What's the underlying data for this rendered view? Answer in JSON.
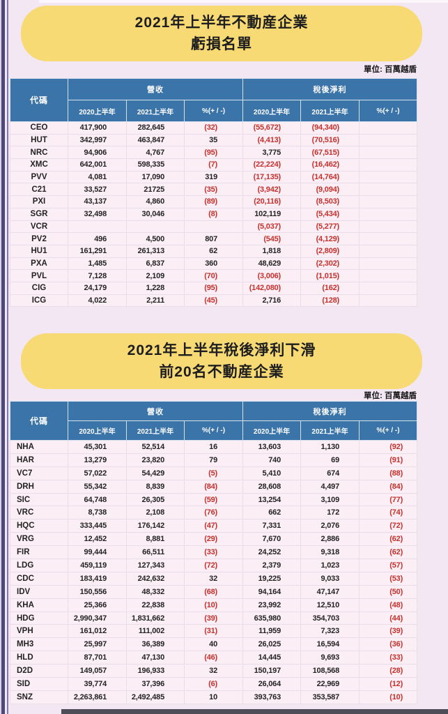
{
  "sections": [
    {
      "title_line1": "2021年上半年不動産企業",
      "title_line2": "虧損名單",
      "unit_label": "單位: 百萬越盾"
    },
    {
      "title_line1": "2021年上半年稅後淨利下滑",
      "title_line2": "前20名不動産企業",
      "unit_label": "單位: 百萬越盾"
    }
  ],
  "table_headers": {
    "code": "代碼",
    "revenue_group": "營收",
    "profit_group": "稅後淨利",
    "sub": [
      "2020上半年",
      "2021上半年",
      "%(+ / -)",
      "2020上半年",
      "2021上半年",
      "%(+ / -)"
    ]
  },
  "colors": {
    "header_blue": "#3b74a8",
    "banner_yellow": "#f7da74",
    "negative_red": "#c5302c",
    "page_background": "#f2e7f3",
    "row_background": "#fbeff5"
  },
  "tables": [
    {
      "name": "loss-list",
      "rows": [
        [
          "CEO",
          "417,900",
          "282,645",
          "(32)",
          "(55,672)",
          "(94,340)",
          ""
        ],
        [
          "HUT",
          "342,997",
          "463,847",
          "35",
          "(4,413)",
          "(70,516)",
          ""
        ],
        [
          "NRC",
          "94,906",
          "4,767",
          "(95)",
          "3,775",
          "(67,515)",
          ""
        ],
        [
          "XMC",
          "642,001",
          "598,335",
          "(7)",
          "(22,224)",
          "(16,462)",
          ""
        ],
        [
          "PVV",
          "4,081",
          "17,090",
          "319",
          "(17,135)",
          "(14,764)",
          ""
        ],
        [
          "C21",
          "33,527",
          "21725",
          "(35)",
          "(3,942)",
          "(9,094)",
          ""
        ],
        [
          "PXI",
          "43,137",
          "4,860",
          "(89)",
          "(20,116)",
          "(8,503)",
          ""
        ],
        [
          "SGR",
          "32,498",
          "30,046",
          "(8)",
          "102,119",
          "(5,434)",
          ""
        ],
        [
          "VCR",
          "",
          "",
          "",
          "(5,037)",
          "(5,277)",
          ""
        ],
        [
          "PV2",
          "496",
          "4,500",
          "807",
          "(545)",
          "(4,129)",
          ""
        ],
        [
          "HU1",
          "161,291",
          "261,313",
          "62",
          "1,818",
          "(2,809)",
          ""
        ],
        [
          "PXA",
          "1,485",
          "6,837",
          "360",
          "48,629",
          "(2,302)",
          ""
        ],
        [
          "PVL",
          "7,128",
          "2,109",
          "(70)",
          "(3,006)",
          "(1,015)",
          ""
        ],
        [
          "CIG",
          "24,179",
          "1,228",
          "(95)",
          "(142,080)",
          "(162)",
          ""
        ],
        [
          "ICG",
          "4,022",
          "2,211",
          "(45)",
          "2,716",
          "(128)",
          ""
        ]
      ]
    },
    {
      "name": "profit-decline-top20",
      "rows": [
        [
          "NHA",
          "45,301",
          "52,514",
          "16",
          "13,603",
          "1,130",
          "(92)"
        ],
        [
          "HAR",
          "13,279",
          "23,820",
          "79",
          "740",
          "69",
          "(91)"
        ],
        [
          "VC7",
          "57,022",
          "54,429",
          "(5)",
          "5,410",
          "674",
          "(88)"
        ],
        [
          "DRH",
          "55,342",
          "8,839",
          "(84)",
          "28,608",
          "4,497",
          "(84)"
        ],
        [
          "SIC",
          "64,748",
          "26,305",
          "(59)",
          "13,254",
          "3,109",
          "(77)"
        ],
        [
          "VRC",
          "8,738",
          "2,108",
          "(76)",
          "662",
          "172",
          "(74)"
        ],
        [
          "HQC",
          "333,445",
          "176,142",
          "(47)",
          "7,331",
          "2,076",
          "(72)"
        ],
        [
          "VRG",
          "12,452",
          "8,881",
          "(29)",
          "7,670",
          "2,886",
          "(62)"
        ],
        [
          "FIR",
          "99,444",
          "66,511",
          "(33)",
          "24,252",
          "9,318",
          "(62)"
        ],
        [
          "LDG",
          "459,119",
          "127,343",
          "(72)",
          "2,379",
          "1,023",
          "(57)"
        ],
        [
          "CDC",
          "183,419",
          "242,632",
          "32",
          "19,225",
          "9,033",
          "(53)"
        ],
        [
          "IDV",
          "150,556",
          "48,332",
          "(68)",
          "94,164",
          "47,147",
          "(50)"
        ],
        [
          "KHA",
          "25,366",
          "22,838",
          "(10)",
          "23,992",
          "12,510",
          "(48)"
        ],
        [
          "HDG",
          "2,990,347",
          "1,831,662",
          "(39)",
          "635,980",
          "354,703",
          "(44)"
        ],
        [
          "VPH",
          "161,012",
          "111,002",
          "(31)",
          "11,959",
          "7,323",
          "(39)"
        ],
        [
          "MH3",
          "25,997",
          "36,389",
          "40",
          "26,025",
          "16,594",
          "(36)"
        ],
        [
          "HLD",
          "87,701",
          "47,130",
          "(46)",
          "14,445",
          "9,693",
          "(33)"
        ],
        [
          "D2D",
          "149,057",
          "196,933",
          "32",
          "150,197",
          "108,568",
          "(28)"
        ],
        [
          "SID",
          "39,774",
          "37,396",
          "(6)",
          "26,064",
          "22,969",
          "(12)"
        ],
        [
          "SNZ",
          "2,263,861",
          "2,492,485",
          "10",
          "393,763",
          "353,587",
          "(10)"
        ]
      ]
    }
  ]
}
